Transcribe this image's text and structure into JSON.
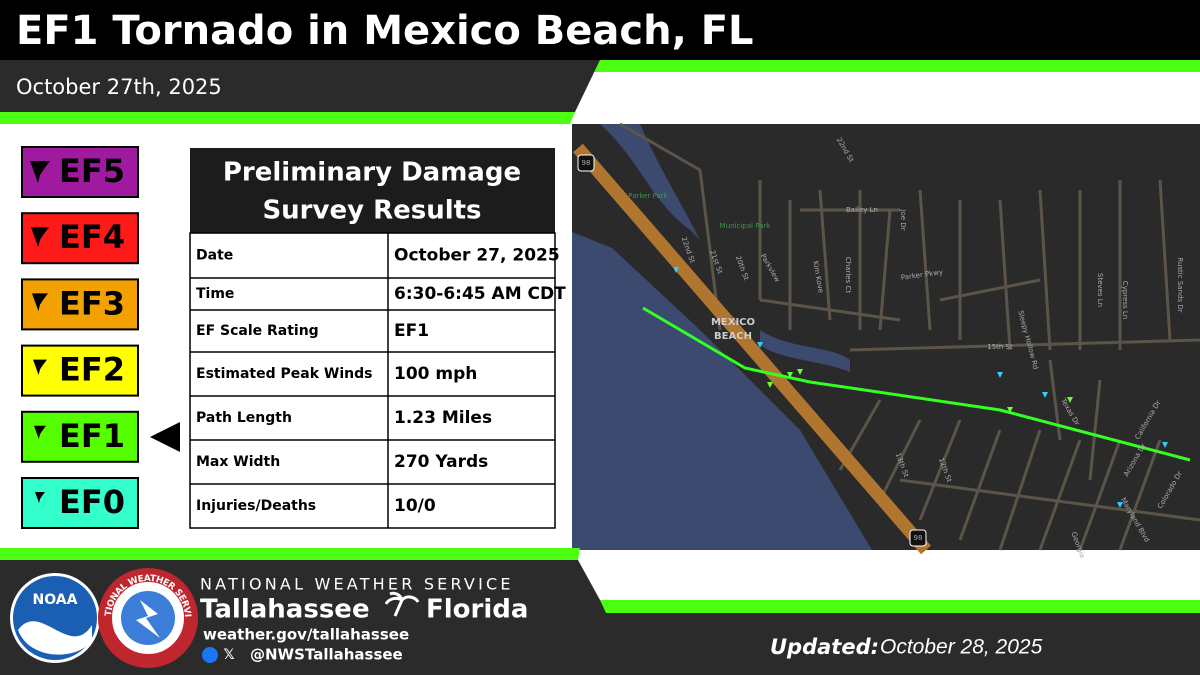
{
  "header": {
    "title": "EF1 Tornado in Mexico Beach, FL",
    "date": "October 27th, 2025"
  },
  "scale": [
    "EF5",
    "EF4",
    "EF3",
    "EF2",
    "EF1",
    "EF0"
  ],
  "table": {
    "title_lines": [
      "Preliminary Damage",
      "Survey Results"
    ],
    "rows": [
      [
        "Date",
        "October 27, 2025"
      ],
      [
        "Time",
        "6:30-6:45 AM CDT"
      ],
      [
        "EF Scale Rating",
        "EF1"
      ],
      [
        "Estimated Peak Winds",
        "100 mph"
      ],
      [
        "Path Length",
        "1.23 Miles"
      ],
      [
        "Max Width",
        "270 Yards"
      ],
      [
        "Injuries/Deaths",
        "10/0"
      ]
    ]
  },
  "map": {
    "labels": [
      "22nd St",
      "Bailey Ln",
      "Municipal Park",
      "Parker Park",
      "Parker Pkwy",
      "MEXICO",
      "BEACH",
      "15th St",
      "Joe Dr",
      "Kim Kove",
      "Charles Ct",
      "Sleepy Hollow Rd",
      "Cypress Ln",
      "Steves Ln",
      "Rustic Sands Dr",
      "22nd St",
      "21st St",
      "20th St",
      "Parkview",
      "13th St",
      "12th St",
      "Texas Dr",
      "California Dr",
      "Arizona Dr",
      "Colorado Dr",
      "Maryland Blvd",
      "Georgia",
      "98",
      "98"
    ]
  },
  "footer": {
    "noaa": "NOAA",
    "nws_ring": "NATIONAL WEATHER SERVICE",
    "agency": "NATIONAL WEATHER SERVICE",
    "office_city": "Tallahassee",
    "office_state": "Florida",
    "url": "weather.gov/tallahassee",
    "handle": "@NWSTallahassee",
    "updated_label": "Updated:",
    "updated_date": "October 28, 2025"
  }
}
